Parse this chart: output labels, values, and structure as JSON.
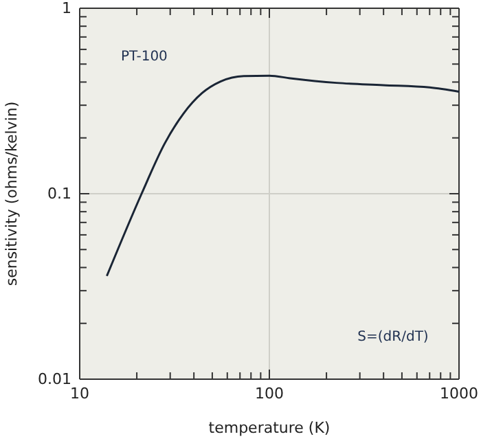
{
  "chart_data": {
    "type": "line",
    "xlabel": "temperature (K)",
    "ylabel": "sensitivity (ohms/kelvin)",
    "log": "xy",
    "xlim": [
      10,
      1000
    ],
    "ylim": [
      0.01,
      1
    ],
    "xticks": [
      10,
      {
        "value": 20,
        "label": null
      },
      {
        "value": 30,
        "label": null
      },
      {
        "value": 40,
        "label": null
      },
      {
        "value": 50,
        "label": null
      },
      {
        "value": 60,
        "label": null
      },
      {
        "value": 70,
        "label": null
      },
      {
        "value": 80,
        "label": null
      },
      {
        "value": 90,
        "label": null
      },
      100,
      {
        "value": 200,
        "label": null
      },
      {
        "value": 300,
        "label": null
      },
      {
        "value": 400,
        "label": null
      },
      {
        "value": 500,
        "label": null
      },
      {
        "value": 600,
        "label": null
      },
      {
        "value": 700,
        "label": null
      },
      {
        "value": 800,
        "label": null
      },
      {
        "value": 900,
        "label": null
      },
      1000
    ],
    "yticks": [
      0.01,
      {
        "value": 0.02,
        "label": null
      },
      {
        "value": 0.03,
        "label": null
      },
      {
        "value": 0.04,
        "label": null
      },
      {
        "value": 0.05,
        "label": null
      },
      {
        "value": 0.06,
        "label": null
      },
      {
        "value": 0.07,
        "label": null
      },
      {
        "value": 0.08,
        "label": null
      },
      {
        "value": 0.09,
        "label": null
      },
      0.1,
      {
        "value": 0.2,
        "label": null
      },
      {
        "value": 0.3,
        "label": null
      },
      {
        "value": 0.4,
        "label": null
      },
      {
        "value": 0.5,
        "label": null
      },
      {
        "value": 0.6,
        "label": null
      },
      {
        "value": 0.7,
        "label": null
      },
      {
        "value": 0.8,
        "label": null
      },
      {
        "value": 0.9,
        "label": null
      },
      1
    ],
    "grid": true,
    "marker": "none",
    "line_style": "solid",
    "annotations": [
      "PT-100",
      "S=(dR/dT)"
    ],
    "series": [
      {
        "color": "#1a2535",
        "x": [
          13.9,
          21.2,
          28.1,
          35.2,
          44.2,
          55.3,
          73.3,
          100,
          129,
          226,
          398,
          701,
          1000
        ],
        "values": [
          0.036,
          0.1,
          0.187,
          0.27,
          0.349,
          0.403,
          0.431,
          0.433,
          0.419,
          0.396,
          0.385,
          0.374,
          0.355
        ]
      }
    ]
  }
}
